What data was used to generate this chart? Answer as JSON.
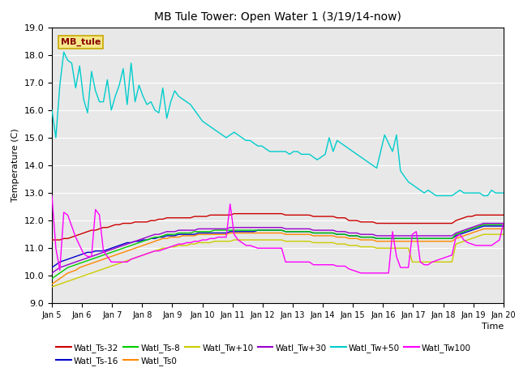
{
  "title": "MB Tule Tower: Open Water 1 (3/19/14-now)",
  "xlabel": "Time",
  "ylabel": "Temperature (C)",
  "ylim": [
    9.0,
    19.0
  ],
  "yticks": [
    9.0,
    10.0,
    11.0,
    12.0,
    13.0,
    14.0,
    15.0,
    16.0,
    17.0,
    18.0,
    19.0
  ],
  "bg_color": "#e8e8e8",
  "annotation_label": "MB_tule",
  "annotation_color": "#8b0000",
  "annotation_bg": "#f5e88a",
  "annotation_border": "#c8a800",
  "series": {
    "Watl_Ts-32": {
      "color": "#cc0000",
      "values": [
        11.3,
        11.3,
        11.3,
        11.35,
        11.35,
        11.4,
        11.45,
        11.5,
        11.55,
        11.6,
        11.65,
        11.65,
        11.7,
        11.75,
        11.75,
        11.8,
        11.85,
        11.85,
        11.9,
        11.9,
        11.9,
        11.95,
        11.95,
        11.95,
        11.95,
        12.0,
        12.0,
        12.05,
        12.05,
        12.1,
        12.1,
        12.1,
        12.1,
        12.1,
        12.1,
        12.1,
        12.15,
        12.15,
        12.15,
        12.15,
        12.2,
        12.2,
        12.2,
        12.2,
        12.2,
        12.2,
        12.25,
        12.25,
        12.25,
        12.25,
        12.25,
        12.25,
        12.25,
        12.25,
        12.25,
        12.25,
        12.25,
        12.25,
        12.25,
        12.2,
        12.2,
        12.2,
        12.2,
        12.2,
        12.2,
        12.2,
        12.15,
        12.15,
        12.15,
        12.15,
        12.15,
        12.15,
        12.1,
        12.1,
        12.1,
        12.0,
        12.0,
        12.0,
        11.95,
        11.95,
        11.95,
        11.95,
        11.9,
        11.9,
        11.9,
        11.9,
        11.9,
        11.9,
        11.9,
        11.9,
        11.9,
        11.9,
        11.9,
        11.9,
        11.9,
        11.9,
        11.9,
        11.9,
        11.9,
        11.9,
        11.9,
        11.9,
        12.0,
        12.05,
        12.1,
        12.15,
        12.15,
        12.2,
        12.2,
        12.2,
        12.2,
        12.2,
        12.2,
        12.2,
        12.2,
        12.25,
        12.25
      ]
    },
    "Watl_Ts-16": {
      "color": "#0000cc",
      "values": [
        10.3,
        10.4,
        10.5,
        10.55,
        10.6,
        10.65,
        10.7,
        10.75,
        10.8,
        10.85,
        10.85,
        10.9,
        10.9,
        10.9,
        10.95,
        11.0,
        11.05,
        11.1,
        11.15,
        11.2,
        11.2,
        11.25,
        11.25,
        11.3,
        11.3,
        11.35,
        11.35,
        11.4,
        11.4,
        11.45,
        11.45,
        11.45,
        11.5,
        11.5,
        11.5,
        11.5,
        11.5,
        11.55,
        11.55,
        11.55,
        11.55,
        11.55,
        11.55,
        11.55,
        11.55,
        11.6,
        11.6,
        11.6,
        11.6,
        11.6,
        11.6,
        11.6,
        11.65,
        11.65,
        11.65,
        11.65,
        11.65,
        11.65,
        11.65,
        11.6,
        11.6,
        11.6,
        11.6,
        11.6,
        11.6,
        11.6,
        11.55,
        11.55,
        11.55,
        11.55,
        11.55,
        11.55,
        11.5,
        11.5,
        11.5,
        11.45,
        11.45,
        11.45,
        11.4,
        11.4,
        11.4,
        11.4,
        11.35,
        11.35,
        11.35,
        11.35,
        11.35,
        11.35,
        11.35,
        11.35,
        11.35,
        11.35,
        11.35,
        11.35,
        11.35,
        11.35,
        11.35,
        11.35,
        11.35,
        11.35,
        11.35,
        11.35,
        11.45,
        11.5,
        11.55,
        11.6,
        11.65,
        11.7,
        11.75,
        11.8,
        11.8,
        11.8,
        11.8,
        11.8,
        11.8,
        11.85,
        11.9
      ]
    },
    "Watl_Ts-8": {
      "color": "#00cc00",
      "values": [
        9.9,
        10.0,
        10.1,
        10.2,
        10.3,
        10.35,
        10.4,
        10.45,
        10.5,
        10.55,
        10.6,
        10.65,
        10.7,
        10.75,
        10.8,
        10.85,
        10.9,
        10.95,
        11.0,
        11.05,
        11.1,
        11.15,
        11.2,
        11.25,
        11.3,
        11.35,
        11.4,
        11.4,
        11.45,
        11.5,
        11.5,
        11.5,
        11.55,
        11.55,
        11.55,
        11.55,
        11.6,
        11.6,
        11.6,
        11.6,
        11.6,
        11.65,
        11.65,
        11.65,
        11.65,
        11.65,
        11.65,
        11.65,
        11.65,
        11.65,
        11.65,
        11.65,
        11.65,
        11.65,
        11.65,
        11.65,
        11.65,
        11.65,
        11.65,
        11.6,
        11.6,
        11.6,
        11.6,
        11.6,
        11.6,
        11.6,
        11.55,
        11.55,
        11.55,
        11.55,
        11.55,
        11.55,
        11.5,
        11.5,
        11.5,
        11.45,
        11.45,
        11.45,
        11.4,
        11.4,
        11.4,
        11.4,
        11.35,
        11.35,
        11.35,
        11.35,
        11.35,
        11.35,
        11.35,
        11.35,
        11.35,
        11.35,
        11.35,
        11.35,
        11.35,
        11.35,
        11.35,
        11.35,
        11.35,
        11.35,
        11.35,
        11.35,
        11.5,
        11.55,
        11.6,
        11.65,
        11.7,
        11.75,
        11.8,
        11.85,
        11.85,
        11.85,
        11.85,
        11.85,
        11.85,
        11.9,
        11.95
      ]
    },
    "Watl_Ts0": {
      "color": "#ff8800",
      "values": [
        9.7,
        9.8,
        9.9,
        10.0,
        10.1,
        10.15,
        10.2,
        10.3,
        10.35,
        10.4,
        10.45,
        10.5,
        10.55,
        10.6,
        10.65,
        10.7,
        10.75,
        10.8,
        10.85,
        10.9,
        10.95,
        11.0,
        11.05,
        11.1,
        11.15,
        11.2,
        11.25,
        11.3,
        11.35,
        11.35,
        11.4,
        11.4,
        11.4,
        11.45,
        11.45,
        11.45,
        11.45,
        11.5,
        11.5,
        11.5,
        11.5,
        11.5,
        11.5,
        11.5,
        11.5,
        11.55,
        11.55,
        11.55,
        11.55,
        11.55,
        11.55,
        11.55,
        11.55,
        11.55,
        11.55,
        11.55,
        11.55,
        11.55,
        11.55,
        11.5,
        11.5,
        11.5,
        11.5,
        11.5,
        11.5,
        11.5,
        11.45,
        11.45,
        11.45,
        11.45,
        11.45,
        11.45,
        11.4,
        11.4,
        11.4,
        11.35,
        11.35,
        11.35,
        11.3,
        11.3,
        11.3,
        11.3,
        11.25,
        11.25,
        11.25,
        11.25,
        11.25,
        11.25,
        11.25,
        11.25,
        11.25,
        11.25,
        11.25,
        11.25,
        11.25,
        11.25,
        11.25,
        11.25,
        11.25,
        11.25,
        11.25,
        11.25,
        11.35,
        11.4,
        11.45,
        11.5,
        11.55,
        11.6,
        11.65,
        11.7,
        11.7,
        11.7,
        11.7,
        11.7,
        11.7,
        11.75,
        11.8
      ]
    },
    "Watl_Tw+10": {
      "color": "#cccc00",
      "values": [
        9.6,
        9.65,
        9.7,
        9.75,
        9.8,
        9.85,
        9.9,
        9.95,
        10.0,
        10.05,
        10.1,
        10.15,
        10.2,
        10.25,
        10.3,
        10.35,
        10.4,
        10.45,
        10.5,
        10.55,
        10.6,
        10.65,
        10.7,
        10.75,
        10.8,
        10.85,
        10.9,
        10.95,
        11.0,
        11.0,
        11.05,
        11.05,
        11.1,
        11.1,
        11.1,
        11.15,
        11.15,
        11.2,
        11.2,
        11.2,
        11.2,
        11.25,
        11.25,
        11.25,
        11.25,
        11.25,
        11.3,
        11.3,
        11.3,
        11.3,
        11.3,
        11.3,
        11.3,
        11.3,
        11.3,
        11.3,
        11.3,
        11.3,
        11.3,
        11.25,
        11.25,
        11.25,
        11.25,
        11.25,
        11.25,
        11.25,
        11.2,
        11.2,
        11.2,
        11.2,
        11.2,
        11.2,
        11.15,
        11.15,
        11.15,
        11.1,
        11.1,
        11.1,
        11.05,
        11.05,
        11.05,
        11.05,
        11.0,
        11.0,
        11.0,
        11.0,
        11.0,
        11.0,
        11.0,
        11.0,
        11.0,
        10.5,
        10.5,
        10.5,
        10.5,
        10.5,
        10.5,
        10.5,
        10.5,
        10.5,
        10.5,
        10.5,
        11.15,
        11.2,
        11.25,
        11.3,
        11.35,
        11.4,
        11.45,
        11.5,
        11.5,
        11.5,
        11.5,
        11.5,
        11.5,
        11.55,
        11.6
      ]
    },
    "Watl_Tw+30": {
      "color": "#9900cc",
      "values": [
        10.1,
        10.2,
        10.3,
        10.35,
        10.4,
        10.45,
        10.5,
        10.55,
        10.6,
        10.65,
        10.7,
        10.75,
        10.8,
        10.85,
        10.9,
        10.95,
        11.0,
        11.05,
        11.1,
        11.15,
        11.2,
        11.25,
        11.3,
        11.35,
        11.4,
        11.45,
        11.5,
        11.5,
        11.55,
        11.6,
        11.6,
        11.6,
        11.65,
        11.65,
        11.65,
        11.65,
        11.65,
        11.7,
        11.7,
        11.7,
        11.7,
        11.7,
        11.7,
        11.7,
        11.7,
        11.75,
        11.75,
        11.75,
        11.75,
        11.75,
        11.75,
        11.75,
        11.75,
        11.75,
        11.75,
        11.75,
        11.75,
        11.75,
        11.75,
        11.7,
        11.7,
        11.7,
        11.7,
        11.7,
        11.7,
        11.7,
        11.65,
        11.65,
        11.65,
        11.65,
        11.65,
        11.65,
        11.6,
        11.6,
        11.6,
        11.55,
        11.55,
        11.55,
        11.5,
        11.5,
        11.5,
        11.5,
        11.45,
        11.45,
        11.45,
        11.45,
        11.45,
        11.45,
        11.45,
        11.45,
        11.45,
        11.45,
        11.45,
        11.45,
        11.45,
        11.45,
        11.45,
        11.45,
        11.45,
        11.45,
        11.45,
        11.45,
        11.55,
        11.6,
        11.65,
        11.7,
        11.75,
        11.8,
        11.85,
        11.9,
        11.9,
        11.9,
        11.9,
        11.9,
        11.9,
        11.95,
        12.0
      ]
    },
    "Watl_Tw+50": {
      "color": "#00cccc",
      "values": [
        16.0,
        15.0,
        16.9,
        18.1,
        17.8,
        17.7,
        16.8,
        17.6,
        16.4,
        15.9,
        17.4,
        16.7,
        16.3,
        16.3,
        17.1,
        16.0,
        16.5,
        16.9,
        17.5,
        16.2,
        17.7,
        16.3,
        16.9,
        16.5,
        16.2,
        16.3,
        16.0,
        15.9,
        16.8,
        15.7,
        16.3,
        16.7,
        16.5,
        16.4,
        16.3,
        16.2,
        16.0,
        15.8,
        15.6,
        15.5,
        15.4,
        15.3,
        15.2,
        15.1,
        15.0,
        15.1,
        15.2,
        15.1,
        15.0,
        14.9,
        14.9,
        14.8,
        14.7,
        14.7,
        14.6,
        14.5,
        14.5,
        14.5,
        14.5,
        14.5,
        14.4,
        14.5,
        14.5,
        14.4,
        14.4,
        14.4,
        14.3,
        14.2,
        14.3,
        14.4,
        15.0,
        14.5,
        14.9,
        14.8,
        14.7,
        14.6,
        14.5,
        14.4,
        14.3,
        14.2,
        14.1,
        14.0,
        13.9,
        14.5,
        15.1,
        14.8,
        14.5,
        15.1,
        13.8,
        13.6,
        13.4,
        13.3,
        13.2,
        13.1,
        13.0,
        13.1,
        13.0,
        12.9,
        12.9,
        12.9,
        12.9,
        12.9,
        13.0,
        13.1,
        13.0,
        13.0,
        13.0,
        13.0,
        13.0,
        12.9,
        12.9,
        13.1,
        13.0,
        13.0,
        13.0,
        12.9,
        13.0
      ]
    },
    "Watl_Tw100": {
      "color": "#ff00ff",
      "values": [
        12.9,
        11.0,
        10.2,
        12.3,
        12.2,
        11.8,
        11.4,
        11.1,
        10.8,
        10.7,
        10.7,
        12.4,
        12.2,
        10.9,
        10.7,
        10.5,
        10.5,
        10.5,
        10.5,
        10.5,
        10.6,
        10.65,
        10.7,
        10.75,
        10.8,
        10.85,
        10.9,
        10.9,
        10.95,
        11.0,
        11.05,
        11.1,
        11.15,
        11.15,
        11.2,
        11.2,
        11.25,
        11.25,
        11.3,
        11.3,
        11.35,
        11.35,
        11.4,
        11.4,
        11.4,
        12.6,
        11.5,
        11.3,
        11.2,
        11.1,
        11.1,
        11.05,
        11.0,
        11.0,
        11.0,
        11.0,
        11.0,
        11.0,
        11.0,
        10.5,
        10.5,
        10.5,
        10.5,
        10.5,
        10.5,
        10.5,
        10.4,
        10.4,
        10.4,
        10.4,
        10.4,
        10.4,
        10.35,
        10.35,
        10.35,
        10.25,
        10.2,
        10.15,
        10.1,
        10.1,
        10.1,
        10.1,
        10.1,
        10.1,
        10.1,
        10.1,
        11.6,
        10.7,
        10.3,
        10.3,
        10.3,
        11.5,
        11.6,
        10.5,
        10.4,
        10.4,
        10.5,
        10.55,
        10.6,
        10.65,
        10.7,
        10.75,
        11.4,
        11.5,
        11.3,
        11.2,
        11.15,
        11.1,
        11.1,
        11.1,
        11.1,
        11.1,
        11.2,
        11.3,
        11.9,
        12.0,
        11.95
      ]
    }
  },
  "n_points": 115,
  "xtick_labels": [
    "Jan 5",
    "Jan 6",
    "Jan 7",
    "Jan 8",
    "Jan 9",
    "Jan 10",
    "Jan 11",
    "Jan 12",
    "Jan 13",
    "Jan 14",
    "Jan 15",
    "Jan 16",
    "Jan 17",
    "Jan 18",
    "Jan 19",
    "Jan 20"
  ],
  "legend_row1": [
    "Watl_Ts-32",
    "Watl_Ts-16",
    "Watl_Ts-8",
    "Watl_Ts0",
    "Watl_Tw+10",
    "Watl_Tw+30"
  ],
  "legend_row2": [
    "Watl_Tw+50",
    "Watl_Tw100"
  ],
  "legend_colors": {
    "Watl_Ts-32": "#cc0000",
    "Watl_Ts-16": "#0000cc",
    "Watl_Ts-8": "#00cc00",
    "Watl_Ts0": "#ff8800",
    "Watl_Tw+10": "#cccc00",
    "Watl_Tw+30": "#9900cc",
    "Watl_Tw+50": "#00cccc",
    "Watl_Tw100": "#ff00ff"
  }
}
